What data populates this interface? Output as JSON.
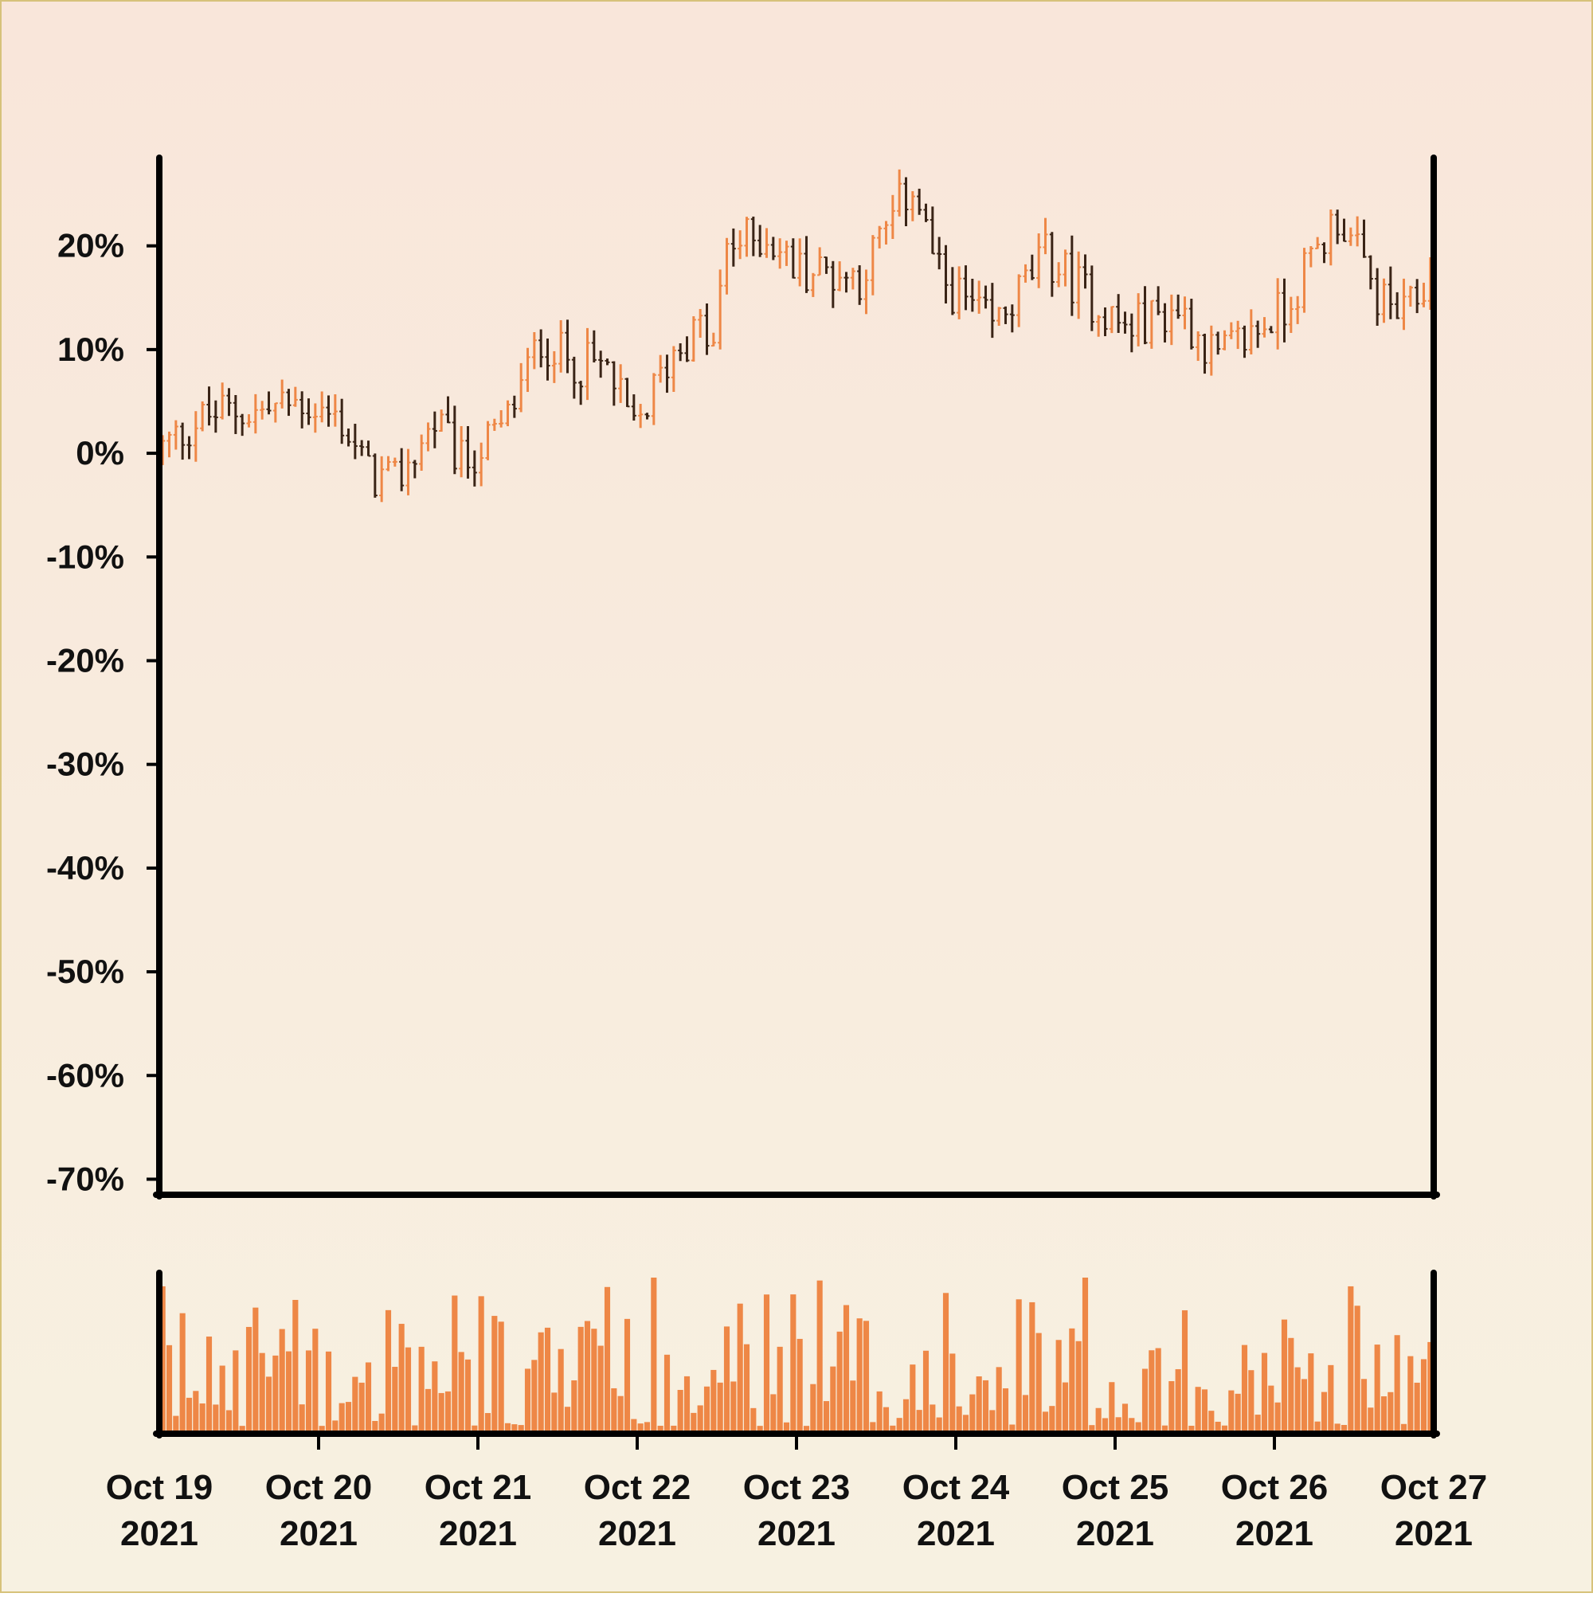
{
  "colors": {
    "background_top": "#F9E6DA",
    "background_bottom": "#F7F1E1",
    "frame_border": "#D7C27A",
    "axis": "#000000",
    "up_bar": "#EE8746",
    "down_bar": "#3A2416",
    "volume": "#EE8746"
  },
  "chart_data": {
    "type": "ohlc",
    "title": "",
    "xlabel": "",
    "ylabel": "",
    "y_axis": {
      "ticks": [
        "20%",
        "10%",
        "0%",
        "-10%",
        "-20%",
        "-30%",
        "-40%",
        "-50%",
        "-60%",
        "-70%"
      ],
      "tick_values": [
        20,
        10,
        0,
        -10,
        -20,
        -30,
        -40,
        -50,
        -60,
        -70
      ],
      "ylim": [
        -71.5,
        28.5
      ],
      "unit": "%"
    },
    "x_axis": {
      "ticks": [
        {
          "line1": "Oct 19",
          "line2": "2021"
        },
        {
          "line1": "Oct 20",
          "line2": "2021"
        },
        {
          "line1": "Oct 21",
          "line2": "2021"
        },
        {
          "line1": "Oct 22",
          "line2": "2021"
        },
        {
          "line1": "Oct 23",
          "line2": "2021"
        },
        {
          "line1": "Oct 24",
          "line2": "2021"
        },
        {
          "line1": "Oct 25",
          "line2": "2021"
        },
        {
          "line1": "Oct 26",
          "line2": "2021"
        },
        {
          "line1": "Oct 27",
          "line2": "2021"
        }
      ],
      "start": "2021-10-19 00:00",
      "end": "2021-10-27 00:00",
      "bar_interval": "hourly"
    },
    "price_series_anchors": [
      {
        "t": "Oct 19 00:00",
        "v": 0
      },
      {
        "t": "Oct 19 06:00",
        "v": 3
      },
      {
        "t": "Oct 19 10:00",
        "v": 4
      },
      {
        "t": "Oct 19 16:00",
        "v": 4
      },
      {
        "t": "Oct 19 22:00",
        "v": 5
      },
      {
        "t": "Oct 20 04:00",
        "v": 3
      },
      {
        "t": "Oct 20 08:00",
        "v": -2
      },
      {
        "t": "Oct 20 12:00",
        "v": -3
      },
      {
        "t": "Oct 20 18:00",
        "v": 3
      },
      {
        "t": "Oct 20 22:00",
        "v": -1
      },
      {
        "t": "Oct 21 04:00",
        "v": 2
      },
      {
        "t": "Oct 21 10:00",
        "v": 11
      },
      {
        "t": "Oct 21 14:00",
        "v": 9
      },
      {
        "t": "Oct 21 20:00",
        "v": 8
      },
      {
        "t": "Oct 22 00:00",
        "v": 2
      },
      {
        "t": "Oct 22 06:00",
        "v": 10
      },
      {
        "t": "Oct 22 10:00",
        "v": 12
      },
      {
        "t": "Oct 22 12:00",
        "v": 10
      },
      {
        "t": "Oct 22 14:00",
        "v": 20
      },
      {
        "t": "Oct 22 20:00",
        "v": 21
      },
      {
        "t": "Oct 23 00:00",
        "v": 18
      },
      {
        "t": "Oct 23 10:00",
        "v": 17
      },
      {
        "t": "Oct 23 18:00",
        "v": 26
      },
      {
        "t": "Oct 23 22:00",
        "v": 17
      },
      {
        "t": "Oct 24 06:00",
        "v": 12
      },
      {
        "t": "Oct 24 14:00",
        "v": 19
      },
      {
        "t": "Oct 25 02:00",
        "v": 12
      },
      {
        "t": "Oct 25 10:00",
        "v": 14
      },
      {
        "t": "Oct 25 16:00",
        "v": 9
      },
      {
        "t": "Oct 26 02:00",
        "v": 14
      },
      {
        "t": "Oct 26 10:00",
        "v": 23
      },
      {
        "t": "Oct 26 16:00",
        "v": 15
      },
      {
        "t": "Oct 26 20:00",
        "v": 13
      },
      {
        "t": "Oct 27 00:00",
        "v": 17
      }
    ],
    "volume": {
      "style": "bars",
      "ylim_relative": [
        0,
        1
      ]
    },
    "grid": false,
    "legend": "none"
  }
}
